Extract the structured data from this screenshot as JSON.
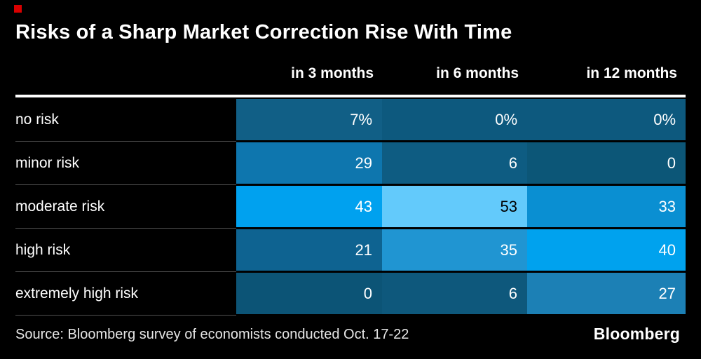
{
  "brand": {
    "red_square_color": "#d90000"
  },
  "chart_data": {
    "type": "heatmap",
    "title": "Risks of a Sharp Market Correction Rise With Time",
    "columns": [
      "in 3 months",
      "in 6 months",
      "in 12 months"
    ],
    "rows": [
      {
        "label": "no risk",
        "display": [
          "7%",
          "0%",
          "0%"
        ],
        "values": [
          7,
          0,
          0
        ],
        "colors": [
          "#115f86",
          "#0d597e",
          "#0d597e"
        ],
        "text_colors": [
          "#ffffff",
          "#ffffff",
          "#ffffff"
        ]
      },
      {
        "label": "minor risk",
        "display": [
          "29",
          "6",
          "0"
        ],
        "values": [
          29,
          6,
          0
        ],
        "colors": [
          "#0e76ae",
          "#0e5c82",
          "#0c5677"
        ],
        "text_colors": [
          "#ffffff",
          "#ffffff",
          "#ffffff"
        ]
      },
      {
        "label": "moderate risk",
        "display": [
          "43",
          "53",
          "33"
        ],
        "values": [
          43,
          53,
          33
        ],
        "colors": [
          "#00a1ef",
          "#63cafb",
          "#0a8fd2"
        ],
        "text_colors": [
          "#ffffff",
          "#000000",
          "#ffffff"
        ]
      },
      {
        "label": "high risk",
        "display": [
          "21",
          "35",
          "40"
        ],
        "values": [
          21,
          35,
          40
        ],
        "colors": [
          "#0e6391",
          "#2095d2",
          "#00a2ee"
        ],
        "text_colors": [
          "#ffffff",
          "#ffffff",
          "#ffffff"
        ]
      },
      {
        "label": "extremely high risk",
        "display": [
          "0",
          "6",
          "27"
        ],
        "values": [
          0,
          6,
          27
        ],
        "colors": [
          "#0c5476",
          "#0e587c",
          "#1c80b5"
        ],
        "text_colors": [
          "#ffffff",
          "#ffffff",
          "#ffffff"
        ]
      }
    ],
    "color_scale": {
      "low": "#0c5476",
      "high": "#63cafb"
    },
    "legend_position": "none",
    "grid": false
  },
  "footer": {
    "source": "Source: Bloomberg survey of economists conducted Oct. 17-22",
    "logo": "Bloomberg"
  }
}
